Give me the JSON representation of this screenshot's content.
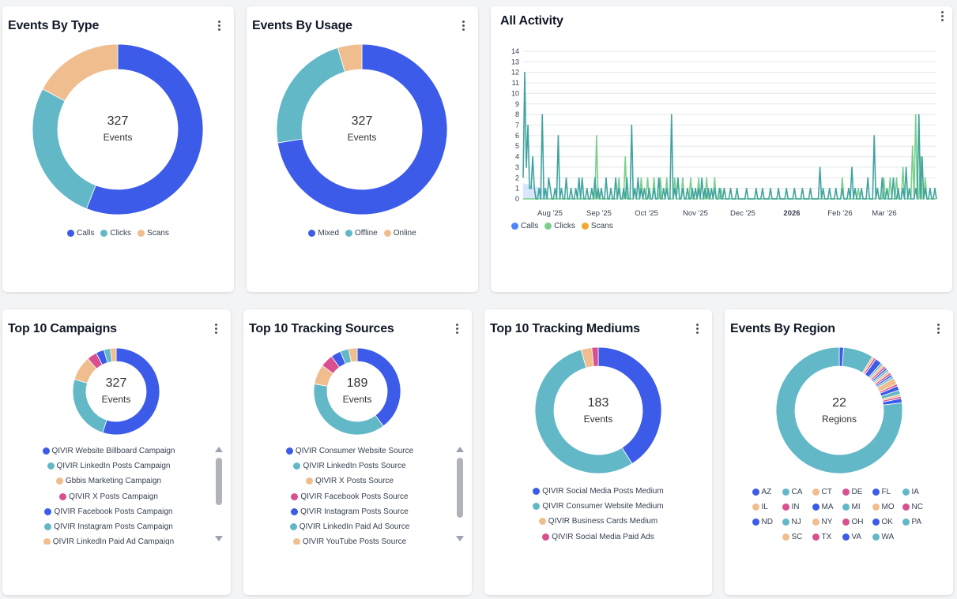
{
  "colors": {
    "blue": "#3b5be8",
    "teal": "#63b8c8",
    "peach": "#f0bd8e",
    "pink": "#d94f8f",
    "green": "#79d08c",
    "orange": "#f0a830"
  },
  "charts": {
    "events_by_type": {
      "title": "Events By Type",
      "center_value": "327",
      "center_label": "Events"
    },
    "events_by_usage": {
      "title": "Events By Usage",
      "center_value": "327",
      "center_label": "Events"
    },
    "all_activity": {
      "title": "All Activity"
    },
    "top_campaigns": {
      "title": "Top 10 Campaigns",
      "center_value": "327",
      "center_label": "Events"
    },
    "top_sources": {
      "title": "Top 10 Tracking Sources",
      "center_value": "189",
      "center_label": "Events"
    },
    "top_mediums": {
      "title": "Top 10 Tracking Mediums",
      "center_value": "183",
      "center_label": "Events"
    },
    "events_by_region": {
      "title": "Events By Region",
      "center_value": "22",
      "center_label": "Regions"
    }
  },
  "chart_data": [
    {
      "type": "pie",
      "title": "Events By Type",
      "categories": [
        "Calls",
        "Clicks",
        "Scans"
      ],
      "values": [
        183,
        88,
        56
      ],
      "colors": [
        "#3b5be8",
        "#63b8c8",
        "#f0bd8e"
      ]
    },
    {
      "type": "pie",
      "title": "Events By Usage",
      "categories": [
        "Mixed",
        "Offline",
        "Online"
      ],
      "values": [
        237,
        75,
        15
      ],
      "colors": [
        "#3b5be8",
        "#63b8c8",
        "#f0bd8e"
      ]
    },
    {
      "type": "line",
      "title": "All Activity",
      "x_ticks": [
        "Aug '25",
        "Sep '25",
        "Oct '25",
        "Nov '25",
        "Dec '25",
        "2026",
        "Feb '26",
        "Mar '26"
      ],
      "y_ticks": [
        0,
        1,
        2,
        3,
        4,
        5,
        6,
        7,
        8,
        9,
        10,
        11,
        12,
        13,
        14
      ],
      "ylim": [
        0,
        14
      ],
      "grid": true,
      "legend": "bottom-left",
      "series": [
        {
          "name": "Calls",
          "color": "#4f86f7",
          "values": [
            1,
            2,
            0,
            1,
            2,
            1,
            0,
            1,
            0,
            0,
            1,
            2,
            0,
            1,
            0,
            1,
            0,
            0,
            1,
            0,
            0,
            1,
            0,
            0,
            0,
            1,
            0,
            0,
            1,
            0,
            0,
            0,
            1,
            0,
            0,
            0,
            1,
            0,
            0,
            0,
            0,
            1,
            0,
            0,
            0,
            0,
            0,
            1,
            0,
            0,
            0,
            0,
            0,
            0,
            0,
            0,
            0,
            0,
            0,
            0,
            0,
            0,
            0,
            0,
            0,
            0,
            0,
            0,
            0,
            0,
            0,
            0,
            0,
            0,
            0,
            0,
            0,
            0,
            0,
            0,
            0,
            0,
            0,
            0,
            0,
            0,
            0,
            0,
            0,
            0
          ]
        },
        {
          "name": "Clicks",
          "color": "#79d08c",
          "values": [
            0,
            0,
            0,
            0,
            0,
            0,
            0,
            0,
            0,
            0,
            0,
            0,
            0,
            0,
            0,
            0,
            0,
            0,
            0,
            0,
            0,
            0,
            0,
            0,
            0,
            0,
            0,
            0,
            0,
            0,
            0,
            0,
            0,
            0,
            0,
            0,
            0,
            0,
            0,
            0,
            0,
            0,
            0,
            0,
            0,
            0,
            0,
            0,
            0,
            0,
            0,
            0,
            0,
            0,
            0,
            0,
            0,
            0,
            0,
            0,
            0,
            0,
            0,
            0,
            0,
            0,
            0,
            0,
            0,
            0,
            0,
            0,
            0,
            0,
            0,
            0,
            0,
            0,
            0,
            0,
            0,
            0,
            0,
            0,
            0,
            0,
            0,
            0,
            0,
            0,
            0,
            0,
            0,
            0,
            0,
            0,
            0,
            0,
            0,
            0,
            0,
            0,
            0,
            0,
            0,
            0,
            0,
            0,
            0,
            0,
            0,
            0,
            0,
            0,
            0,
            0,
            0,
            0,
            0,
            0,
            0,
            0,
            0,
            0,
            0,
            0,
            0,
            0,
            0,
            0,
            0,
            0,
            0,
            0,
            0,
            0,
            0,
            0,
            0,
            0,
            0,
            0,
            0,
            0,
            0,
            0,
            0,
            0,
            0,
            0,
            0,
            0,
            0,
            0,
            0,
            0,
            0,
            0,
            0,
            0,
            0,
            0,
            0,
            0,
            0,
            0,
            0,
            0,
            0,
            0,
            0,
            0,
            0,
            0,
            0,
            0,
            0,
            0,
            0,
            0,
            0,
            0,
            0,
            0,
            0,
            0,
            0,
            0,
            0,
            0,
            0,
            0,
            0,
            0,
            0,
            0,
            0,
            0,
            0,
            0,
            0,
            0,
            0,
            0,
            0,
            0,
            0,
            0,
            0,
            0,
            0,
            0,
            0,
            0,
            0,
            0,
            0,
            0,
            0,
            0,
            0,
            0,
            0,
            0,
            0,
            0,
            0,
            0,
            0,
            0,
            0,
            0,
            0,
            0,
            0,
            0,
            0,
            0,
            0,
            0,
            0,
            0,
            0
          ]
        },
        {
          "name": "Scans",
          "color": "#f0a830",
          "values": []
        }
      ],
      "series_approx": {
        "scans_teal_peaks": [
          [
            0,
            2
          ],
          [
            1,
            12
          ],
          [
            2,
            3
          ],
          [
            3,
            7
          ],
          [
            4,
            1
          ],
          [
            5,
            1
          ],
          [
            6,
            4
          ],
          [
            7,
            1
          ],
          [
            10,
            1
          ],
          [
            12,
            8
          ],
          [
            14,
            1
          ],
          [
            16,
            2
          ],
          [
            17,
            1
          ],
          [
            20,
            1
          ],
          [
            22,
            6
          ],
          [
            24,
            1
          ],
          [
            27,
            2
          ],
          [
            30,
            1
          ],
          [
            33,
            1
          ],
          [
            35,
            2
          ],
          [
            37,
            2
          ],
          [
            40,
            1
          ],
          [
            43,
            1
          ],
          [
            45,
            2
          ],
          [
            47,
            1
          ],
          [
            49,
            1
          ],
          [
            52,
            2
          ],
          [
            55,
            1
          ],
          [
            58,
            2
          ],
          [
            60,
            1
          ],
          [
            63,
            1
          ],
          [
            65,
            2
          ],
          [
            68,
            7
          ],
          [
            70,
            1
          ],
          [
            72,
            2
          ],
          [
            74,
            1
          ],
          [
            76,
            1
          ],
          [
            79,
            1
          ],
          [
            82,
            1
          ],
          [
            85,
            2
          ],
          [
            88,
            1
          ],
          [
            90,
            1
          ],
          [
            93,
            8
          ],
          [
            95,
            1
          ],
          [
            97,
            2
          ],
          [
            100,
            1
          ],
          [
            103,
            1
          ],
          [
            106,
            1
          ],
          [
            108,
            1
          ],
          [
            110,
            1
          ],
          [
            112,
            2
          ],
          [
            114,
            1
          ],
          [
            116,
            1
          ],
          [
            118,
            1
          ],
          [
            120,
            1
          ],
          [
            123,
            1
          ],
          [
            126,
            1
          ],
          [
            130,
            1
          ],
          [
            134,
            1
          ],
          [
            140,
            1
          ],
          [
            146,
            1
          ],
          [
            150,
            1
          ],
          [
            155,
            1
          ],
          [
            160,
            1
          ],
          [
            165,
            1
          ],
          [
            170,
            1
          ],
          [
            175,
            1
          ],
          [
            180,
            1
          ],
          [
            186,
            3
          ],
          [
            188,
            1
          ],
          [
            192,
            1
          ],
          [
            196,
            1
          ],
          [
            200,
            1
          ],
          [
            204,
            1
          ],
          [
            206,
            3
          ],
          [
            208,
            1
          ],
          [
            212,
            1
          ],
          [
            216,
            2
          ],
          [
            220,
            6
          ],
          [
            222,
            1
          ],
          [
            225,
            2
          ],
          [
            228,
            1
          ],
          [
            232,
            2
          ],
          [
            235,
            1
          ],
          [
            238,
            1
          ],
          [
            240,
            3
          ],
          [
            242,
            1
          ],
          [
            246,
            1
          ],
          [
            248,
            8
          ],
          [
            250,
            4
          ],
          [
            252,
            1
          ],
          [
            255,
            1
          ],
          [
            258,
            1
          ]
        ],
        "clicks_green_peaks": [
          [
            46,
            6
          ],
          [
            60,
            2
          ],
          [
            64,
            4
          ],
          [
            70,
            1
          ],
          [
            74,
            2
          ],
          [
            78,
            2
          ],
          [
            82,
            2
          ],
          [
            86,
            2
          ],
          [
            90,
            2
          ],
          [
            95,
            2
          ],
          [
            100,
            2
          ],
          [
            105,
            2
          ],
          [
            110,
            2
          ],
          [
            115,
            2
          ],
          [
            120,
            2
          ],
          [
            124,
            1
          ],
          [
            200,
            2
          ],
          [
            210,
            1
          ],
          [
            222,
            1
          ],
          [
            226,
            2
          ],
          [
            230,
            2
          ],
          [
            234,
            2
          ],
          [
            238,
            3
          ],
          [
            244,
            5
          ],
          [
            246,
            8
          ],
          [
            249,
            4
          ],
          [
            252,
            2
          ]
        ]
      }
    },
    {
      "type": "pie",
      "title": "Top 10 Campaigns",
      "categories": [
        "QIVIR Website Billboard Campaign",
        "QIVIR LinkedIn Posts Campaign",
        "Gbbis Marketing Campaign",
        "QIVIR X Posts Campaign",
        "QIVIR Facebook Posts Campaign",
        "QIVIR Instagram Posts Campaign",
        "QIVIR LinkedIn Paid Ad Campaign"
      ],
      "values": [
        180,
        80,
        30,
        12,
        10,
        8,
        7
      ],
      "colors": [
        "#3b5be8",
        "#63b8c8",
        "#f0bd8e",
        "#d94f8f",
        "#3b5be8",
        "#63b8c8",
        "#f0bd8e"
      ]
    },
    {
      "type": "pie",
      "title": "Top 10 Tracking Sources",
      "categories": [
        "QIVIR Consumer Website Source",
        "QIVIR LinkedIn Posts Source",
        "QIVIR X Posts Source",
        "QIVIR Facebook Posts Source",
        "QIVIR Instagram Posts Source",
        "QIVIR LinkedIn Paid Ad Source",
        "QIVIR YouTube Posts Source"
      ],
      "values": [
        75,
        72,
        14,
        9,
        7,
        6,
        6
      ],
      "colors": [
        "#3b5be8",
        "#63b8c8",
        "#f0bd8e",
        "#d94f8f",
        "#3b5be8",
        "#63b8c8",
        "#f0bd8e"
      ]
    },
    {
      "type": "pie",
      "title": "Top 10 Tracking Mediums",
      "categories": [
        "QIVIR Social Media Posts Medium",
        "QIVIR Consumer Website Medium",
        "QIVIR Business Cards Medium",
        "QIVIR Social Media Paid Ads"
      ],
      "values": [
        75,
        100,
        5,
        3
      ],
      "colors": [
        "#3b5be8",
        "#63b8c8",
        "#f0bd8e",
        "#d94f8f"
      ]
    },
    {
      "type": "pie",
      "title": "Events By Region",
      "categories": [
        "AZ",
        "CA",
        "CT",
        "DE",
        "FL",
        "IA",
        "IL",
        "IN",
        "MA",
        "MI",
        "MO",
        "NC",
        "ND",
        "NJ",
        "NY",
        "OH",
        "OK",
        "PA",
        "SC",
        "TX",
        "VA",
        "WA"
      ],
      "values": [
        2,
        14,
        1,
        1,
        3,
        1,
        1,
        1,
        1,
        1,
        1,
        1,
        1,
        1,
        3,
        1,
        2,
        2,
        1,
        1,
        2,
        140
      ],
      "colors": [
        "#3b5be8",
        "#63b8c8",
        "#f0bd8e",
        "#d94f8f",
        "#3b5be8",
        "#63b8c8",
        "#f0bd8e",
        "#d94f8f",
        "#3b5be8",
        "#63b8c8",
        "#f0bd8e",
        "#d94f8f",
        "#3b5be8",
        "#63b8c8",
        "#f0bd8e",
        "#d94f8f",
        "#3b5be8",
        "#63b8c8",
        "#f0bd8e",
        "#d94f8f",
        "#3b5be8",
        "#63b8c8"
      ]
    }
  ]
}
